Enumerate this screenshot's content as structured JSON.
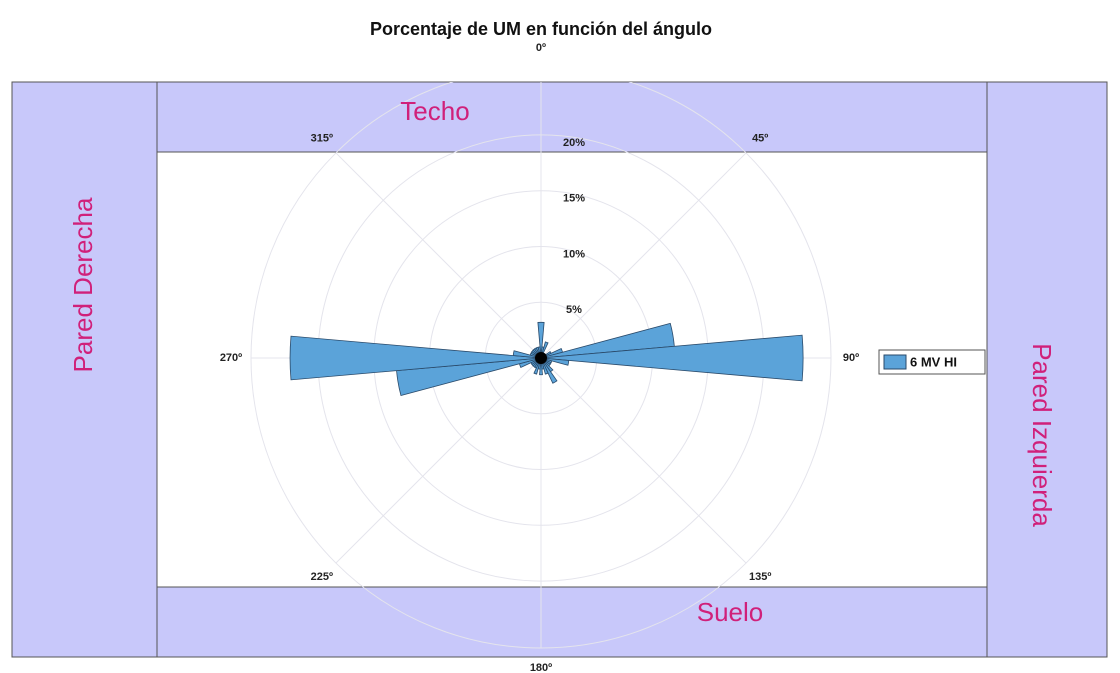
{
  "chart_data": {
    "type": "polar_bar",
    "title": "Porcentaje de UM en función del ángulo",
    "x": [
      0,
      10,
      20,
      30,
      40,
      50,
      60,
      70,
      80,
      90,
      100,
      110,
      120,
      130,
      140,
      150,
      160,
      170,
      180,
      190,
      200,
      210,
      220,
      230,
      240,
      250,
      260,
      270,
      280,
      290,
      300,
      310,
      320,
      330,
      340,
      350
    ],
    "series": [
      {
        "name": "6 MV HI",
        "color": "#5ba3d9",
        "values": [
          3.2,
          1,
          1.5,
          0.5,
          0.5,
          0.5,
          1,
          2,
          12,
          23.5,
          2.5,
          1,
          1,
          1,
          1.5,
          2.5,
          1.5,
          1,
          1.5,
          1,
          1.5,
          1,
          1,
          1,
          1,
          2,
          13,
          22.5,
          2.5,
          1,
          1,
          1,
          1,
          1,
          1,
          1
        ]
      }
    ],
    "bin_width": 10,
    "rlim": [
      0,
      26
    ],
    "rticks": [
      {
        "value": 5,
        "label": "5%"
      },
      {
        "value": 10,
        "label": "10%"
      },
      {
        "value": 15,
        "label": "15%"
      },
      {
        "value": 20,
        "label": "20%"
      }
    ],
    "thetaticks": [
      {
        "value": 0,
        "label": "0º"
      },
      {
        "value": 45,
        "label": "45º"
      },
      {
        "value": 90,
        "label": "90º"
      },
      {
        "value": 135,
        "label": "135º"
      },
      {
        "value": 180,
        "label": "180º"
      },
      {
        "value": 225,
        "label": "225º"
      },
      {
        "value": 270,
        "label": "270º"
      },
      {
        "value": 315,
        "label": "315º"
      }
    ],
    "annotations": [
      "Techo",
      "Suelo",
      "Pared Derecha",
      "Pared Izquierda"
    ],
    "grid": true,
    "legend": "right"
  }
}
